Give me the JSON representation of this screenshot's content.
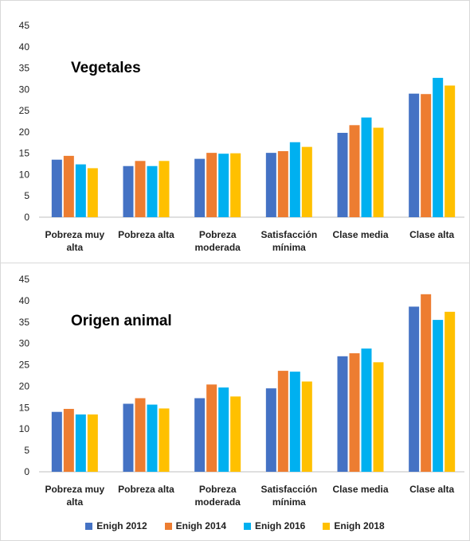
{
  "chart_data": [
    {
      "type": "bar",
      "title": "Vegetales",
      "categories": [
        "Pobreza muy alta",
        "Pobreza alta",
        "Pobreza moderada",
        "Satisfacción mínima",
        "Clase media",
        "Clase alta"
      ],
      "ylim": [
        0,
        45
      ],
      "yticks": [
        0,
        5,
        10,
        15,
        20,
        25,
        30,
        35,
        40,
        45
      ],
      "grid": false,
      "series": [
        {
          "name": "Enigh 2012",
          "color": "#4472C4",
          "values": [
            13.5,
            12.0,
            13.7,
            15.1,
            19.8,
            29.0
          ]
        },
        {
          "name": "Enigh 2014",
          "color": "#ED7D31",
          "values": [
            14.4,
            13.2,
            15.1,
            15.5,
            21.6,
            28.9
          ]
        },
        {
          "name": "Enigh 2016",
          "color": "#00B0F0",
          "values": [
            12.4,
            12.0,
            14.9,
            17.6,
            23.4,
            32.7
          ]
        },
        {
          "name": "Enigh 2018",
          "color": "#FFC000",
          "values": [
            11.5,
            13.2,
            15.0,
            16.5,
            21.0,
            30.9
          ]
        }
      ]
    },
    {
      "type": "bar",
      "title": "Origen animal",
      "categories": [
        "Pobreza muy alta",
        "Pobreza alta",
        "Pobreza moderada",
        "Satisfacción mínima",
        "Clase media",
        "Clase alta"
      ],
      "ylim": [
        0,
        45
      ],
      "yticks": [
        0,
        5,
        10,
        15,
        20,
        25,
        30,
        35,
        40,
        45
      ],
      "grid": false,
      "series": [
        {
          "name": "Enigh 2012",
          "color": "#4472C4",
          "values": [
            14.0,
            15.9,
            17.2,
            19.5,
            27.0,
            38.6
          ]
        },
        {
          "name": "Enigh 2014",
          "color": "#ED7D31",
          "values": [
            14.7,
            17.2,
            20.4,
            23.6,
            27.7,
            41.5
          ]
        },
        {
          "name": "Enigh 2016",
          "color": "#00B0F0",
          "values": [
            13.4,
            15.7,
            19.7,
            23.4,
            28.8,
            35.5
          ]
        },
        {
          "name": "Enigh 2018",
          "color": "#FFC000",
          "values": [
            13.4,
            14.8,
            17.6,
            21.1,
            25.6,
            37.4
          ]
        }
      ]
    }
  ],
  "legend": {
    "placement": "bottom",
    "items": [
      {
        "label": "Enigh 2012",
        "color": "#4472C4"
      },
      {
        "label": "Enigh 2014",
        "color": "#ED7D31"
      },
      {
        "label": "Enigh 2016",
        "color": "#00B0F0"
      },
      {
        "label": "Enigh 2018",
        "color": "#FFC000"
      }
    ]
  }
}
